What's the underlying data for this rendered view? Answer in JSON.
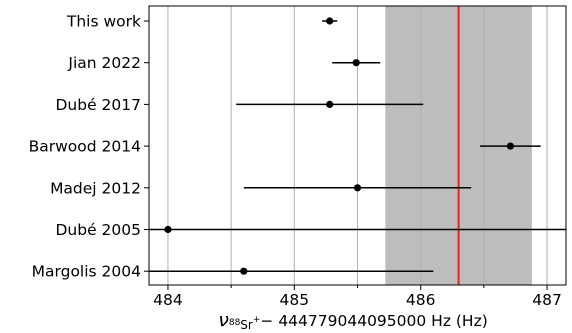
{
  "chart_data": {
    "type": "scatter",
    "title": "",
    "xlabel": {
      "prefix": "ν",
      "sub_mass": "88",
      "sub_elem": "Sr",
      "sub_charge": "+",
      "suffix": "− 444779044095000 Hz (Hz)"
    },
    "ylabel": "",
    "xlim": [
      483.85,
      487.15
    ],
    "xticks": [
      484,
      485,
      486,
      487
    ],
    "xtick_labels": [
      "484",
      "485",
      "486",
      "487"
    ],
    "grid": "vertical",
    "categories": [
      "This work",
      "Jian 2022",
      "Dubé 2017",
      "Barwood 2014",
      "Madej 2012",
      "Dubé 2005",
      "Margolis 2004"
    ],
    "points": [
      {
        "label": "This work",
        "x": 485.28,
        "err_low": 0.06,
        "err_high": 0.06
      },
      {
        "label": "Jian 2022",
        "x": 485.49,
        "err_low": 0.19,
        "err_high": 0.19
      },
      {
        "label": "Dubé 2017",
        "x": 485.28,
        "err_low": 0.74,
        "err_high": 0.74
      },
      {
        "label": "Barwood 2014",
        "x": 486.71,
        "err_low": 0.24,
        "err_high": 0.24
      },
      {
        "label": "Madej 2012",
        "x": 485.5,
        "err_low": 0.9,
        "err_high": 0.9
      },
      {
        "label": "Dubé 2005",
        "x": 484.0,
        "err_low": 1.2,
        "err_high": 3.5
      },
      {
        "label": "Margolis 2004",
        "x": 484.6,
        "err_low": 0.9,
        "err_high": 1.5
      }
    ],
    "reference_band": {
      "x0": 485.72,
      "x1": 486.88
    },
    "reference_line": {
      "x": 486.3
    },
    "colors": {
      "points": "#000000",
      "band": "#bdbdbd",
      "ref_line": "#e8241c",
      "grid": "#b0b0b0"
    }
  }
}
